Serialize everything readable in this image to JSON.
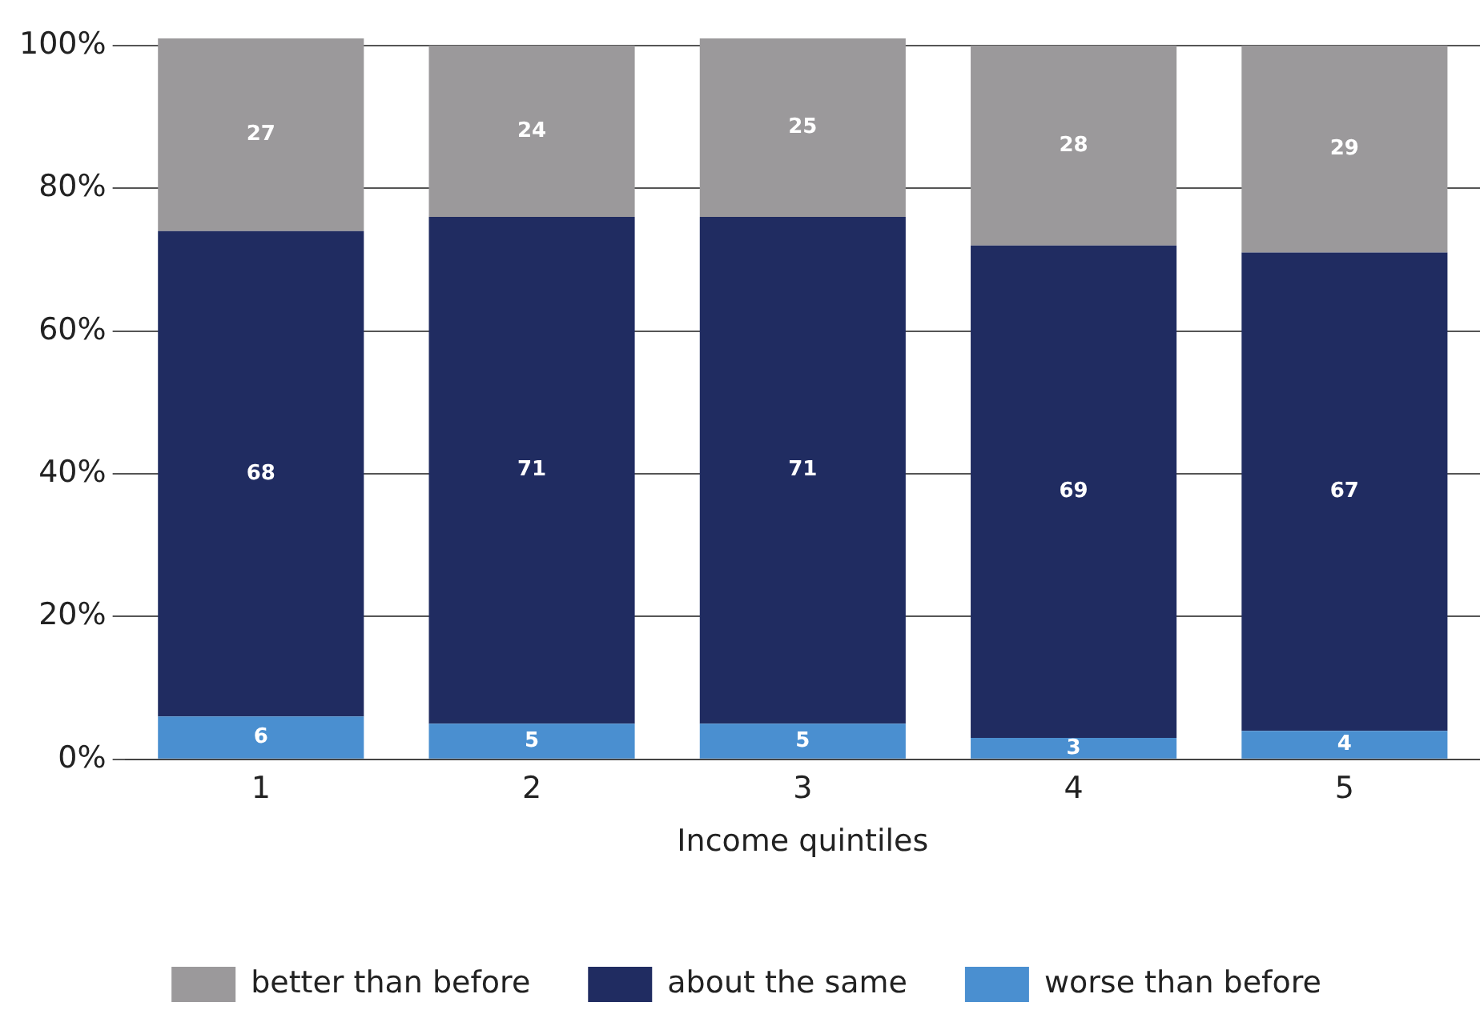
{
  "chart_data": {
    "type": "bar",
    "stacked": true,
    "xlabel": "Income quintiles",
    "categories": [
      "1",
      "2",
      "3",
      "4",
      "5"
    ],
    "series": [
      {
        "name": "worse than before",
        "color": "#4a8fd0",
        "values": [
          6,
          5,
          5,
          3,
          4
        ]
      },
      {
        "name": "about the same",
        "color": "#202c61",
        "values": [
          68,
          71,
          71,
          69,
          67
        ]
      },
      {
        "name": "better than before",
        "color": "#9b999b",
        "values": [
          27,
          24,
          25,
          28,
          29
        ]
      }
    ],
    "ylim": [
      0,
      101
    ],
    "yticks": [
      {
        "value": 0,
        "label": "0%"
      },
      {
        "value": 20,
        "label": "20%"
      },
      {
        "value": 40,
        "label": "40%"
      },
      {
        "value": 60,
        "label": "60%"
      },
      {
        "value": 80,
        "label": "80%"
      },
      {
        "value": 100,
        "label": "100%"
      }
    ],
    "grid": "y",
    "legend": "bottom",
    "data_labels": true
  }
}
